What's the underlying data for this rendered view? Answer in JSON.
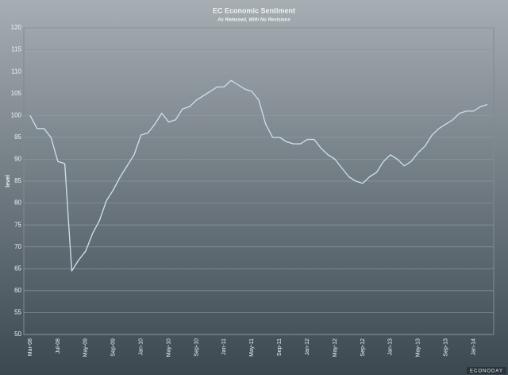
{
  "chart_data": {
    "type": "line",
    "title": "EC Economic Sentiment",
    "subtitle": "As Released, With No Revisions",
    "y_label": "level",
    "footer": "ECONODAY",
    "categories": [
      "Mar-08",
      null,
      null,
      null,
      "Jul-08",
      null,
      null,
      null,
      "May-09",
      null,
      null,
      null,
      "Sep-09",
      null,
      null,
      null,
      "Jan-10",
      null,
      null,
      null,
      "May-10",
      null,
      null,
      null,
      "Sep-10",
      null,
      null,
      null,
      "Jan-11",
      null,
      null,
      null,
      "May-11",
      null,
      null,
      null,
      "Sep-11",
      null,
      null,
      null,
      "Jan-12",
      null,
      null,
      null,
      "May-12",
      null,
      null,
      null,
      "Sep-12",
      null,
      null,
      null,
      "Jan-13",
      null,
      null,
      null,
      "May-13",
      null,
      null,
      null,
      "Sep-13",
      null,
      null,
      null,
      "Jan-14",
      null,
      null
    ],
    "series": [
      {
        "name": "EC Economic Sentiment",
        "color": "#c8dcea",
        "values": [
          100,
          97,
          97,
          95,
          89.5,
          89,
          64.5,
          67,
          69,
          73,
          76,
          80.5,
          83,
          86,
          88.5,
          91,
          95.5,
          96,
          98,
          100.5,
          98.5,
          99,
          101.5,
          102,
          103.5,
          104.5,
          105.5,
          106.5,
          106.5,
          108,
          107,
          106,
          105.5,
          103.5,
          98,
          95,
          95,
          94,
          93.5,
          93.5,
          94.5,
          94.5,
          92.5,
          91,
          90,
          88,
          86,
          85,
          84.5,
          86,
          87,
          89.5,
          91,
          90,
          88.5,
          89.5,
          91.5,
          93,
          95.5,
          97,
          98,
          99,
          100.5,
          101,
          101,
          102,
          102.5
        ]
      }
    ],
    "ylim": [
      50,
      120
    ],
    "yticks": [
      50,
      55,
      60,
      65,
      70,
      75,
      80,
      85,
      90,
      95,
      100,
      105,
      110,
      115,
      120
    ],
    "grid": true
  }
}
